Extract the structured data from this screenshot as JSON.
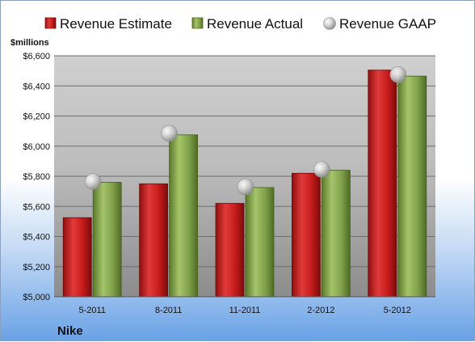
{
  "chart_data": {
    "type": "bar",
    "ylabel": "$millions",
    "company": "Nike",
    "categories": [
      "5-2011",
      "8-2011",
      "11-2011",
      "2-2012",
      "5-2012"
    ],
    "series": [
      {
        "name": "Revenue Estimate",
        "type": "bar",
        "color": "#c41a1a",
        "values": [
          5525,
          5750,
          5620,
          5820,
          6505
        ]
      },
      {
        "name": "Revenue Actual",
        "type": "bar",
        "color": "#7fa04a",
        "values": [
          5760,
          6075,
          5725,
          5840,
          6465
        ]
      },
      {
        "name": "Revenue GAAP",
        "type": "marker",
        "color": "#b8b8b8",
        "values": [
          5765,
          6085,
          5730,
          5845,
          6475
        ]
      }
    ],
    "ylim": [
      5000,
      6600
    ],
    "yticks": [
      5000,
      5200,
      5400,
      5600,
      5800,
      6000,
      6200,
      6400,
      6600
    ],
    "ytick_labels": [
      "$5,000",
      "$5,200",
      "$5,400",
      "$5,600",
      "$5,800",
      "$6,000",
      "$6,200",
      "$6,400",
      "$6,600"
    ],
    "grid": true,
    "legend": "top"
  }
}
